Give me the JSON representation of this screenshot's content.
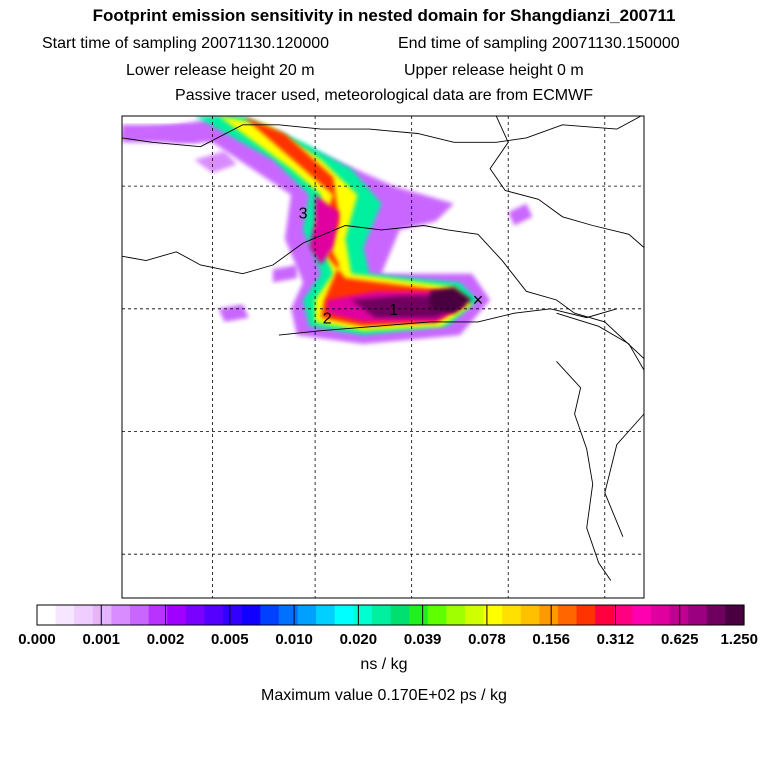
{
  "title": "Footprint emission sensitivity in nested domain for Shangdianzi_200711",
  "start_time": "Start time of sampling 20071130.120000",
  "end_time": "End time of sampling 20071130.150000",
  "lower_release": "Lower release height   20 m",
  "upper_release": "Upper release height    0 m",
  "tracer_note": "Passive tracer used, meteorological data are from ECMWF",
  "colors": {
    "scale": [
      "#ffffff",
      "#f7e6ff",
      "#efcdff",
      "#e6b3ff",
      "#d98cff",
      "#c966ff",
      "#b833ff",
      "#a000ff",
      "#7a00ff",
      "#5500ff",
      "#3300ff",
      "#1100ff",
      "#0040ff",
      "#0070ff",
      "#00a0ff",
      "#00d0ff",
      "#00ffff",
      "#00ffd0",
      "#00f0a0",
      "#00e070",
      "#20f020",
      "#60ff00",
      "#a0ff00",
      "#d0ff00",
      "#ffff00",
      "#ffe000",
      "#ffc000",
      "#ff9900",
      "#ff6600",
      "#ff3300",
      "#ff0040",
      "#ff0080",
      "#ff00b0",
      "#e000a0",
      "#c00090",
      "#9a0080",
      "#700060",
      "#4a0040"
    ],
    "coast": "#000000",
    "grid": "#000000"
  },
  "chart_data": {
    "type": "heatmap",
    "title": "Footprint emission sensitivity in nested domain for Shangdianzi_200711",
    "colorbar": {
      "ticks": [
        "0.000",
        "0.001",
        "0.002",
        "0.005",
        "0.010",
        "0.020",
        "0.039",
        "0.078",
        "0.156",
        "0.312",
        "0.625",
        "1.250"
      ],
      "unit": "ns / kg"
    },
    "max_value_text": "Maximum value  0.170E+02 ps / kg",
    "markers": [
      {
        "label": "1",
        "lon": 115.5,
        "lat": 40.0
      },
      {
        "label": "2",
        "lon": 114.4,
        "lat": 39.9
      },
      {
        "label": "3",
        "lon": 114.0,
        "lat": 41.1
      }
    ],
    "release_site": {
      "symbol": "×",
      "lon": 116.9,
      "lat": 40.1
    },
    "plume_levels": [
      {
        "level": 1,
        "color_index": 5,
        "points": [
          [
            111,
            42
          ],
          [
            112.8,
            42.2
          ],
          [
            114.2,
            41.8
          ],
          [
            115.5,
            41.4
          ],
          [
            116.5,
            41.2
          ],
          [
            116.2,
            41.0
          ],
          [
            115.6,
            40.9
          ],
          [
            115.3,
            40.4
          ],
          [
            116.8,
            40.4
          ],
          [
            117.1,
            40.1
          ],
          [
            116.6,
            39.7
          ],
          [
            115.0,
            39.6
          ],
          [
            113.9,
            39.7
          ],
          [
            113.8,
            40.0
          ],
          [
            114.0,
            40.3
          ],
          [
            113.7,
            40.8
          ],
          [
            113.8,
            41.3
          ],
          [
            112.5,
            41.9
          ],
          [
            111,
            41.9
          ]
        ]
      },
      {
        "level": 2,
        "color_index": 18,
        "points": [
          [
            112.2,
            42.2
          ],
          [
            113,
            42.2
          ],
          [
            114.0,
            41.9
          ],
          [
            114.8,
            41.6
          ],
          [
            115.3,
            41.2
          ],
          [
            115.0,
            40.7
          ],
          [
            115.1,
            40.4
          ],
          [
            116.6,
            40.3
          ],
          [
            116.9,
            40.1
          ],
          [
            116.4,
            39.8
          ],
          [
            115,
            39.7
          ],
          [
            114.1,
            39.8
          ],
          [
            114.0,
            40.1
          ],
          [
            114.3,
            40.4
          ],
          [
            114.0,
            40.9
          ],
          [
            114.1,
            41.3
          ],
          [
            113.5,
            41.7
          ]
        ]
      },
      {
        "level": 3,
        "color_index": 24,
        "points": [
          [
            112.6,
            42.2
          ],
          [
            113.4,
            42.1
          ],
          [
            114.3,
            41.7
          ],
          [
            114.9,
            41.3
          ],
          [
            114.7,
            40.8
          ],
          [
            114.8,
            40.4
          ],
          [
            116.5,
            40.25
          ],
          [
            116.8,
            40.05
          ],
          [
            116.3,
            39.8
          ],
          [
            115,
            39.75
          ],
          [
            114.2,
            39.85
          ],
          [
            114.2,
            40.1
          ],
          [
            114.5,
            40.4
          ],
          [
            114.2,
            40.9
          ],
          [
            114.3,
            41.3
          ],
          [
            113.8,
            41.6
          ]
        ]
      },
      {
        "level": 4,
        "color_index": 29,
        "points": [
          [
            113,
            42.2
          ],
          [
            113.7,
            42.0
          ],
          [
            114.5,
            41.5
          ],
          [
            114.6,
            41.0
          ],
          [
            114.4,
            40.6
          ],
          [
            114.7,
            40.35
          ],
          [
            116.4,
            40.2
          ],
          [
            116.7,
            40.05
          ],
          [
            116.2,
            39.85
          ],
          [
            115,
            39.8
          ],
          [
            114.3,
            39.9
          ],
          [
            114.35,
            40.1
          ],
          [
            114.6,
            40.5
          ],
          [
            114.3,
            40.9
          ],
          [
            114.5,
            41.3
          ],
          [
            114.0,
            41.6
          ]
        ]
      },
      {
        "level": 5,
        "color_index": 33,
        "points": [
          [
            114.2,
            41.3
          ],
          [
            114.6,
            41.1
          ],
          [
            114.5,
            40.7
          ],
          [
            114.3,
            40.5
          ],
          [
            114.1,
            40.7
          ],
          [
            114.2,
            41.0
          ]
        ]
      },
      {
        "level": 5,
        "color_index": 33,
        "points": [
          [
            114.4,
            40.1
          ],
          [
            115.2,
            40.2
          ],
          [
            116.3,
            40.2
          ],
          [
            116.7,
            40.05
          ],
          [
            116.2,
            39.85
          ],
          [
            115.0,
            39.85
          ],
          [
            114.4,
            39.95
          ]
        ]
      },
      {
        "level": 6,
        "color_index": 36,
        "points": [
          [
            114.8,
            40.1
          ],
          [
            115.6,
            40.15
          ],
          [
            116.3,
            40.15
          ],
          [
            116.65,
            40.05
          ],
          [
            116.2,
            39.9
          ],
          [
            115.2,
            39.9
          ]
        ]
      },
      {
        "level": 7,
        "color_index": 37,
        "points": [
          [
            116.1,
            40.2
          ],
          [
            116.5,
            40.25
          ],
          [
            116.8,
            40.1
          ],
          [
            116.5,
            39.95
          ],
          [
            116.1,
            40.0
          ]
        ]
      }
    ],
    "purple_fringe": [
      {
        "color_index": 5,
        "points": [
          [
            111,
            42.1
          ],
          [
            112.1,
            42.1
          ],
          [
            112.3,
            41.9
          ],
          [
            111.9,
            41.9
          ],
          [
            111.5,
            42.0
          ],
          [
            111.0,
            41.95
          ]
        ]
      },
      {
        "color_index": 4,
        "points": [
          [
            112.2,
            41.7
          ],
          [
            112.7,
            41.8
          ],
          [
            112.9,
            41.65
          ],
          [
            112.5,
            41.55
          ]
        ]
      },
      {
        "color_index": 5,
        "points": [
          [
            117.4,
            41.1
          ],
          [
            117.7,
            41.2
          ],
          [
            117.8,
            41.05
          ],
          [
            117.5,
            40.95
          ]
        ]
      },
      {
        "color_index": 5,
        "points": [
          [
            112.6,
            40.0
          ],
          [
            113.0,
            40.05
          ],
          [
            113.1,
            39.9
          ],
          [
            112.7,
            39.85
          ]
        ]
      },
      {
        "color_index": 5,
        "points": [
          [
            113.5,
            40.45
          ],
          [
            113.9,
            40.5
          ],
          [
            113.9,
            40.35
          ],
          [
            113.5,
            40.3
          ]
        ]
      }
    ],
    "coastlines": [
      [
        [
          111,
          41.95
        ],
        [
          111.5,
          41.9
        ],
        [
          112.3,
          41.85
        ],
        [
          113.0,
          42.1
        ],
        [
          113.6,
          42.1
        ],
        [
          114.3,
          42.05
        ],
        [
          115.1,
          42.05
        ],
        [
          115.9,
          42.0
        ],
        [
          116.5,
          41.9
        ],
        [
          117.2,
          41.9
        ],
        [
          117.7,
          41.95
        ],
        [
          118.3,
          42.1
        ],
        [
          119.2,
          42.05
        ],
        [
          119.6,
          42.2
        ]
      ],
      [
        [
          117.2,
          42.2
        ],
        [
          117.4,
          41.9
        ],
        [
          117.1,
          41.6
        ],
        [
          117.35,
          41.35
        ],
        [
          117.9,
          41.25
        ],
        [
          118.3,
          41.05
        ],
        [
          118.8,
          40.95
        ],
        [
          119.4,
          40.85
        ],
        [
          119.65,
          40.7
        ]
      ],
      [
        [
          111,
          40.6
        ],
        [
          111.4,
          40.55
        ],
        [
          111.9,
          40.65
        ],
        [
          112.3,
          40.5
        ],
        [
          113.0,
          40.4
        ],
        [
          113.5,
          40.5
        ],
        [
          114.0,
          40.75
        ],
        [
          114.7,
          40.95
        ],
        [
          115.3,
          40.9
        ],
        [
          116.0,
          40.95
        ],
        [
          116.4,
          40.9
        ],
        [
          116.9,
          40.85
        ],
        [
          117.3,
          40.55
        ],
        [
          117.7,
          40.2
        ],
        [
          118.2,
          40.1
        ],
        [
          118.5,
          39.95
        ],
        [
          119.0,
          39.85
        ],
        [
          119.7,
          39.4
        ]
      ],
      [
        [
          113.6,
          39.7
        ],
        [
          114.3,
          39.75
        ],
        [
          115.2,
          39.8
        ],
        [
          116.1,
          39.85
        ],
        [
          116.9,
          39.85
        ],
        [
          117.5,
          39.95
        ],
        [
          118.1,
          40.0
        ],
        [
          118.7,
          39.9
        ],
        [
          119.2,
          40.0
        ]
      ],
      [
        [
          118.2,
          39.95
        ],
        [
          118.9,
          39.8
        ],
        [
          119.4,
          39.6
        ],
        [
          119.65,
          39.3
        ]
      ],
      [
        [
          118.2,
          39.4
        ],
        [
          118.6,
          39.1
        ],
        [
          118.5,
          38.8
        ],
        [
          118.7,
          38.4
        ],
        [
          118.8,
          38.0
        ],
        [
          118.7,
          37.5
        ],
        [
          118.9,
          37.1
        ],
        [
          119.1,
          36.9
        ]
      ],
      [
        [
          119.65,
          38.8
        ],
        [
          119.2,
          38.45
        ],
        [
          119.0,
          37.9
        ],
        [
          119.3,
          37.4
        ]
      ]
    ],
    "lon_range": [
      111,
      119.65
    ],
    "lat_range": [
      36.7,
      42.2
    ],
    "grid_lon": [
      112.5,
      114.2,
      115.8,
      117.4,
      119.0
    ],
    "grid_lat": [
      37.2,
      38.6,
      40.0,
      41.4
    ]
  }
}
